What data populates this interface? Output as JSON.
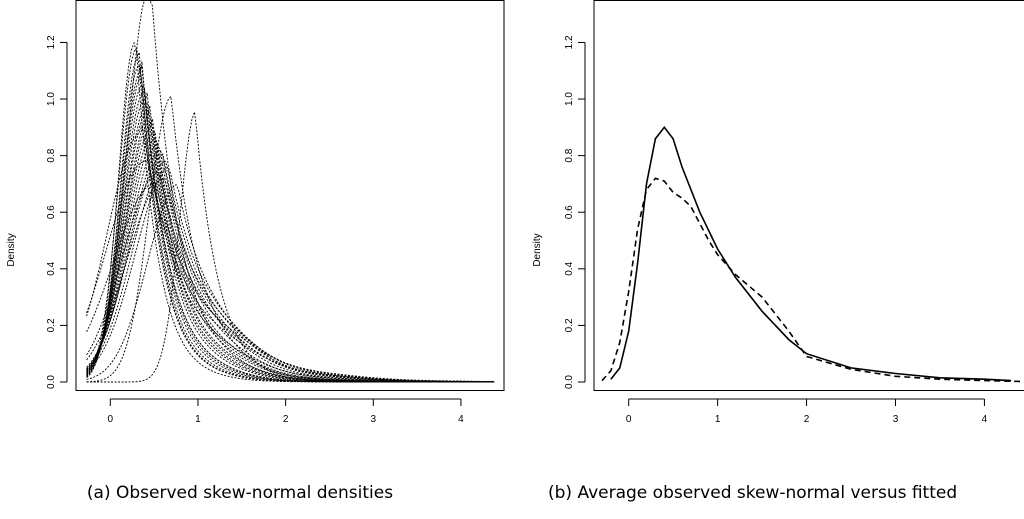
{
  "chart_data": [
    {
      "type": "line",
      "caption": "(a) Observed skew-normal densities",
      "ylabel": "Density",
      "xlabel": "",
      "xlim": [
        -0.3,
        4.4
      ],
      "ylim": [
        0.0,
        1.35
      ],
      "x_ticks": [
        "0",
        "1",
        "2",
        "3",
        "4"
      ],
      "y_ticks": [
        "0.0",
        "0.2",
        "0.4",
        "0.6",
        "0.8",
        "1.0",
        "1.2"
      ],
      "grid": false,
      "series_style": "dotted",
      "series": [
        {
          "shape": [
            0.45,
            0.0
          ],
          "scale": 0.3,
          "amp": 1.4
        },
        {
          "shape": [
            0.28,
            0.0
          ],
          "scale": 0.22,
          "amp": 1.2
        },
        {
          "shape": [
            0.3,
            0.0
          ],
          "scale": 0.24,
          "amp": 1.18
        },
        {
          "shape": [
            0.32,
            0.0
          ],
          "scale": 0.24,
          "amp": 1.15
        },
        {
          "shape": [
            0.33,
            0.0
          ],
          "scale": 0.25,
          "amp": 1.12
        },
        {
          "shape": [
            0.35,
            0.0
          ],
          "scale": 0.26,
          "amp": 1.1
        },
        {
          "shape": [
            0.36,
            0.0
          ],
          "scale": 0.27,
          "amp": 1.08
        },
        {
          "shape": [
            0.37,
            0.0
          ],
          "scale": 0.28,
          "amp": 1.05
        },
        {
          "shape": [
            0.38,
            0.0
          ],
          "scale": 0.28,
          "amp": 1.02
        },
        {
          "shape": [
            0.4,
            0.0
          ],
          "scale": 0.3,
          "amp": 1.0
        },
        {
          "shape": [
            0.42,
            0.0
          ],
          "scale": 0.31,
          "amp": 0.98
        },
        {
          "shape": [
            0.43,
            0.0
          ],
          "scale": 0.32,
          "amp": 0.96
        },
        {
          "shape": [
            0.45,
            0.0
          ],
          "scale": 0.33,
          "amp": 0.94
        },
        {
          "shape": [
            0.46,
            0.0
          ],
          "scale": 0.34,
          "amp": 0.92
        },
        {
          "shape": [
            0.48,
            0.0
          ],
          "scale": 0.36,
          "amp": 0.9
        },
        {
          "shape": [
            0.5,
            0.0
          ],
          "scale": 0.37,
          "amp": 0.88
        },
        {
          "shape": [
            0.52,
            0.0
          ],
          "scale": 0.38,
          "amp": 0.86
        },
        {
          "shape": [
            0.55,
            0.0
          ],
          "scale": 0.4,
          "amp": 0.84
        },
        {
          "shape": [
            0.58,
            0.0
          ],
          "scale": 0.42,
          "amp": 0.82
        },
        {
          "shape": [
            0.6,
            0.0
          ],
          "scale": 0.44,
          "amp": 0.8
        },
        {
          "shape": [
            0.64,
            0.0
          ],
          "scale": 0.45,
          "amp": 0.78
        },
        {
          "shape": [
            0.68,
            0.0
          ],
          "scale": 0.46,
          "amp": 0.76
        },
        {
          "shape": [
            0.7,
            0.0
          ],
          "scale": 0.3,
          "amp": 1.01
        },
        {
          "shape": [
            0.78,
            0.0
          ],
          "scale": 0.42,
          "amp": 0.7
        },
        {
          "shape": [
            0.98,
            0.0
          ],
          "scale": 0.22,
          "amp": 0.96
        },
        {
          "shape": [
            0.55,
            0.0
          ],
          "scale": 0.48,
          "amp": 0.74
        },
        {
          "shape": [
            0.4,
            0.0
          ],
          "scale": 0.52,
          "amp": 0.78
        },
        {
          "shape": [
            0.35,
            0.0
          ],
          "scale": 0.45,
          "amp": 0.88
        },
        {
          "shape": [
            0.5,
            0.0
          ],
          "scale": 0.55,
          "amp": 0.7
        },
        {
          "shape": [
            0.62,
            0.0
          ],
          "scale": 0.5,
          "amp": 0.72
        }
      ]
    },
    {
      "type": "line",
      "caption": "(b) Average observed skew-normal versus fitted",
      "ylabel": "Density",
      "xlabel": "",
      "xlim": [
        -0.3,
        4.4
      ],
      "ylim": [
        0.0,
        1.35
      ],
      "x_ticks": [
        "0",
        "1",
        "2",
        "3",
        "4"
      ],
      "y_ticks": [
        "0.0",
        "0.2",
        "0.4",
        "0.6",
        "0.8",
        "1.0",
        "1.2"
      ],
      "grid": false,
      "series": [
        {
          "style": "solid",
          "x": [
            -0.2,
            -0.1,
            0.0,
            0.1,
            0.2,
            0.3,
            0.4,
            0.5,
            0.6,
            0.8,
            1.0,
            1.2,
            1.5,
            1.8,
            2.0,
            2.5,
            3.0,
            3.5,
            4.0,
            4.3
          ],
          "y": [
            0.01,
            0.05,
            0.18,
            0.42,
            0.7,
            0.86,
            0.9,
            0.86,
            0.76,
            0.6,
            0.47,
            0.37,
            0.25,
            0.15,
            0.1,
            0.05,
            0.03,
            0.015,
            0.01,
            0.005
          ]
        },
        {
          "style": "dashed",
          "x": [
            -0.3,
            -0.2,
            -0.1,
            0.0,
            0.1,
            0.2,
            0.3,
            0.4,
            0.5,
            0.6,
            0.7,
            0.8,
            0.9,
            1.0,
            1.2,
            1.5,
            1.8,
            2.0,
            2.5,
            3.0,
            3.5,
            4.0,
            4.4
          ],
          "y": [
            0.005,
            0.04,
            0.14,
            0.32,
            0.54,
            0.68,
            0.72,
            0.71,
            0.67,
            0.65,
            0.62,
            0.56,
            0.5,
            0.45,
            0.38,
            0.3,
            0.18,
            0.09,
            0.045,
            0.02,
            0.01,
            0.005,
            0.002
          ]
        }
      ]
    }
  ]
}
